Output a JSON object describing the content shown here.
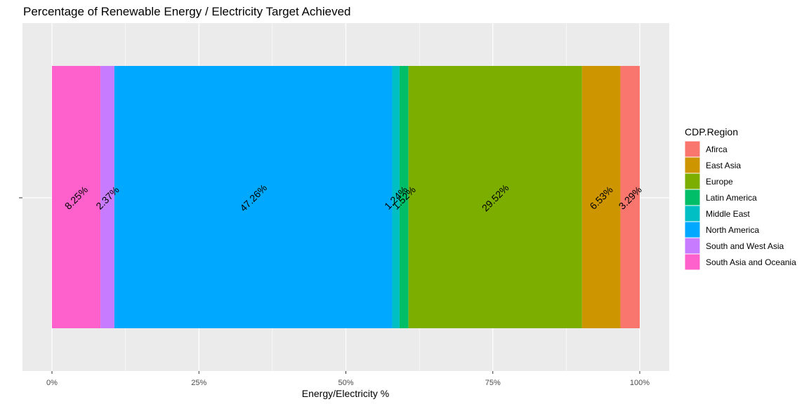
{
  "chart_data": {
    "type": "bar",
    "orientation": "horizontal-stacked",
    "title": "Percentage of Renewable Energy / Electricity Target Achieved",
    "xlabel": "Energy/Electricity %",
    "ylabel": "",
    "xlim": [
      0,
      1
    ],
    "x_ticks": [
      {
        "value": 0,
        "label": "0%"
      },
      {
        "value": 0.25,
        "label": "25%"
      },
      {
        "value": 0.5,
        "label": "50%"
      },
      {
        "value": 0.75,
        "label": "75%"
      },
      {
        "value": 1,
        "label": "100%"
      }
    ],
    "grid": true,
    "legend": {
      "title": "CDP.Region",
      "position": "right"
    },
    "segments": [
      {
        "name": "South Asia and Oceania",
        "value": 8.25,
        "label": "8.25%",
        "color": "#FF61CC"
      },
      {
        "name": "South and West Asia",
        "value": 2.37,
        "label": "2.37%",
        "color": "#C77CFF"
      },
      {
        "name": "North America",
        "value": 47.26,
        "label": "47.26%",
        "color": "#00A9FF"
      },
      {
        "name": "Middle East",
        "value": 1.24,
        "label": "1.24%",
        "color": "#00BFC4"
      },
      {
        "name": "Latin America",
        "value": 1.52,
        "label": "1.52%",
        "color": "#00BE67"
      },
      {
        "name": "Europe",
        "value": 29.52,
        "label": "29.52%",
        "color": "#7CAE00"
      },
      {
        "name": "East Asia",
        "value": 6.53,
        "label": "6.53%",
        "color": "#CD9600"
      },
      {
        "name": "Afirca",
        "value": 3.29,
        "label": "3.29%",
        "color": "#F8766D"
      }
    ],
    "legend_order": [
      "Afirca",
      "East Asia",
      "Europe",
      "Latin America",
      "Middle East",
      "North America",
      "South and West Asia",
      "South Asia and Oceania"
    ]
  }
}
